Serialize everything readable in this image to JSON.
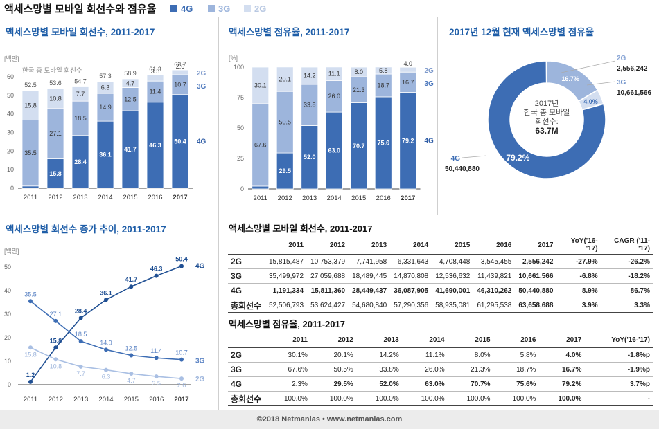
{
  "header": {
    "title": "액세스망별 모바일 회선수와 점유율",
    "legend": [
      {
        "label": "4G",
        "color": "#3d6db4"
      },
      {
        "label": "3G",
        "color": "#9db5dc"
      },
      {
        "label": "2G",
        "color": "#d3def0"
      }
    ]
  },
  "colors": {
    "g4": "#3d6db4",
    "g3": "#9db5dc",
    "g2": "#d3def0",
    "title_blue": "#1f5ea8"
  },
  "chart1": {
    "title": "액세스망별 모바일 회선수, 2011-2017",
    "unit": "[백만]",
    "annotation": "한국 총 모바일 회선수"
  },
  "chart2": {
    "title": "액세스망별 점유율, 2011-2017",
    "unit": "[%]"
  },
  "chart3": {
    "title": "2017년 12월 현재 액세스망별 점유율",
    "center_lines": [
      "2017년",
      "한국 총 모바일",
      "회선수:",
      "63.7M"
    ],
    "labels": [
      {
        "name": "2G",
        "value": "2,556,242"
      },
      {
        "name": "3G",
        "value": "10,661,566"
      },
      {
        "name": "4G",
        "value": "50,440,880"
      }
    ]
  },
  "chart4": {
    "title": "액세스망별 회선수 증가 추이, 2011-2017",
    "unit": "[백만]"
  },
  "chart_data": [
    {
      "type": "bar",
      "stacked": true,
      "title": "액세스망별 모바일 회선수, 2011-2017",
      "ylabel": "[백만]",
      "ylim": [
        0,
        60
      ],
      "yticks": [
        0,
        10,
        20,
        30,
        40,
        50,
        60
      ],
      "categories": [
        "2011",
        "2012",
        "2013",
        "2014",
        "2015",
        "2016",
        "2017"
      ],
      "series": [
        {
          "name": "4G",
          "values": [
            1.2,
            15.8,
            28.4,
            36.1,
            41.7,
            46.3,
            50.4
          ]
        },
        {
          "name": "3G",
          "values": [
            35.5,
            27.1,
            18.5,
            14.9,
            12.5,
            11.4,
            10.7
          ]
        },
        {
          "name": "2G",
          "values": [
            15.8,
            10.8,
            7.7,
            6.3,
            4.7,
            3.5,
            2.6
          ]
        }
      ],
      "totals": [
        52.5,
        53.6,
        54.7,
        57.3,
        58.9,
        61.3,
        63.7
      ]
    },
    {
      "type": "bar",
      "stacked": true,
      "title": "액세스망별 점유율, 2011-2017",
      "ylabel": "[%]",
      "ylim": [
        0,
        100
      ],
      "yticks": [
        0,
        25,
        50,
        75,
        100
      ],
      "categories": [
        "2011",
        "2012",
        "2013",
        "2014",
        "2015",
        "2016",
        "2017"
      ],
      "series": [
        {
          "name": "4G",
          "values": [
            2.3,
            29.5,
            52.0,
            63.0,
            70.7,
            75.6,
            79.2
          ]
        },
        {
          "name": "3G",
          "values": [
            67.6,
            50.5,
            33.8,
            26.0,
            21.3,
            18.7,
            16.7
          ]
        },
        {
          "name": "2G",
          "values": [
            30.1,
            20.1,
            14.2,
            11.1,
            8.0,
            5.8,
            4.0
          ]
        }
      ]
    },
    {
      "type": "pie",
      "title": "2017년 12월 현재 액세스망별 점유율",
      "categories": [
        "4G",
        "3G",
        "2G"
      ],
      "values": [
        79.2,
        16.7,
        4.0
      ],
      "value_labels": [
        "79.2%",
        "16.7%",
        "4.0%"
      ]
    },
    {
      "type": "line",
      "title": "액세스망별 회선수 증가 추이, 2011-2017",
      "ylabel": "[백만]",
      "ylim": [
        0,
        50
      ],
      "yticks": [
        0,
        10,
        20,
        30,
        40,
        50
      ],
      "categories": [
        "2011",
        "2012",
        "2013",
        "2014",
        "2015",
        "2016",
        "2017"
      ],
      "series": [
        {
          "name": "4G",
          "values": [
            1.2,
            15.8,
            28.4,
            36.1,
            41.7,
            46.3,
            50.4
          ]
        },
        {
          "name": "3G",
          "values": [
            35.5,
            27.1,
            18.5,
            14.9,
            12.5,
            11.4,
            10.7
          ]
        },
        {
          "name": "2G",
          "values": [
            15.8,
            10.8,
            7.7,
            6.3,
            4.7,
            3.5,
            2.6
          ]
        }
      ]
    },
    {
      "type": "table",
      "title": "액세스망별 모바일 회선수, 2011-2017",
      "columns": [
        "",
        "2011",
        "2012",
        "2013",
        "2014",
        "2015",
        "2016",
        "2017",
        "YoY('16-'17)",
        "CAGR ('11-'17)"
      ],
      "rows": [
        [
          "2G",
          "15,815,487",
          "10,753,379",
          "7,741,958",
          "6,331,643",
          "4,708,448",
          "3,545,455",
          "2,556,242",
          "-27.9%",
          "-26.2%"
        ],
        [
          "3G",
          "35,499,972",
          "27,059,688",
          "18,489,445",
          "14,870,808",
          "12,536,632",
          "11,439,821",
          "10,661,566",
          "-6.8%",
          "-18.2%"
        ],
        [
          "4G",
          "1,191,334",
          "15,811,360",
          "28,449,437",
          "36,087,905",
          "41,690,001",
          "46,310,262",
          "50,440,880",
          "8.9%",
          "86.7%"
        ],
        [
          "총회선수",
          "52,506,793",
          "53,624,427",
          "54,680,840",
          "57,290,356",
          "58,935,081",
          "61,295,538",
          "63,658,688",
          "3.9%",
          "3.3%"
        ]
      ]
    },
    {
      "type": "table",
      "title": "액세스망별 점유율, 2011-2017",
      "columns": [
        "",
        "2011",
        "2012",
        "2013",
        "2014",
        "2015",
        "2016",
        "2017",
        "YoY('16-'17)"
      ],
      "rows": [
        [
          "2G",
          "30.1%",
          "20.1%",
          "14.2%",
          "11.1%",
          "8.0%",
          "5.8%",
          "4.0%",
          "-1.8%p"
        ],
        [
          "3G",
          "67.6%",
          "50.5%",
          "33.8%",
          "26.0%",
          "21.3%",
          "18.7%",
          "16.7%",
          "-1.9%p"
        ],
        [
          "4G",
          "2.3%",
          "29.5%",
          "52.0%",
          "63.0%",
          "70.7%",
          "75.6%",
          "79.2%",
          "3.7%p"
        ],
        [
          "총회선수",
          "100.0%",
          "100.0%",
          "100.0%",
          "100.0%",
          "100.0%",
          "100.0%",
          "100.0%",
          "-"
        ]
      ]
    }
  ],
  "footer": "©2018 Netmanias • www.netmanias.com"
}
